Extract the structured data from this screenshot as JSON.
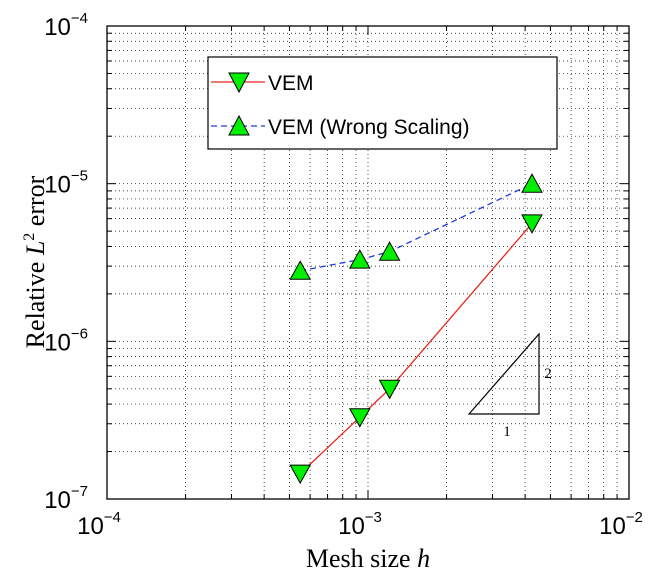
{
  "chart_data": {
    "type": "line",
    "xscale": "log",
    "yscale": "log",
    "xlim": [
      0.0001,
      0.01
    ],
    "ylim": [
      1e-07,
      0.0001
    ],
    "grid": true,
    "xlabel": {
      "prefix": "Mesh size ",
      "var": "h"
    },
    "ylabel": {
      "prefix": "Relative ",
      "var": "L",
      "sup": "2",
      "suffix": " error"
    },
    "x_ticks": [
      {
        "value": 0.0001,
        "base": "10",
        "exp": "−4"
      },
      {
        "value": 0.001,
        "base": "10",
        "exp": "−3"
      },
      {
        "value": 0.01,
        "base": "10",
        "exp": "−2"
      }
    ],
    "y_ticks": [
      {
        "value": 1e-07,
        "base": "10",
        "exp": "−7"
      },
      {
        "value": 1e-06,
        "base": "10",
        "exp": "−6"
      },
      {
        "value": 1e-05,
        "base": "10",
        "exp": "−5"
      },
      {
        "value": 0.0001,
        "base": "10",
        "exp": "−4"
      }
    ],
    "legend_position": "top-left",
    "series": [
      {
        "name": "VEM",
        "color": "#e8281e",
        "line_style": "solid",
        "marker": "triangle-down",
        "marker_color": "#00ee00",
        "x": [
          0.00055,
          0.00093,
          0.00121,
          0.00425
        ],
        "y": [
          1.45e-07,
          3.3e-07,
          5e-07,
          5.6e-06
        ]
      },
      {
        "name": "VEM (Wrong Scaling)",
        "color": "#1f3ad6",
        "line_style": "dashed",
        "marker": "triangle-up",
        "marker_color": "#00ee00",
        "x": [
          0.00055,
          0.00093,
          0.00121,
          0.00425
        ],
        "y": [
          2.8e-06,
          3.3e-06,
          3.7e-06,
          1e-05
        ]
      }
    ],
    "slope_triangle": {
      "run_label": "1",
      "rise_label": "2"
    }
  }
}
